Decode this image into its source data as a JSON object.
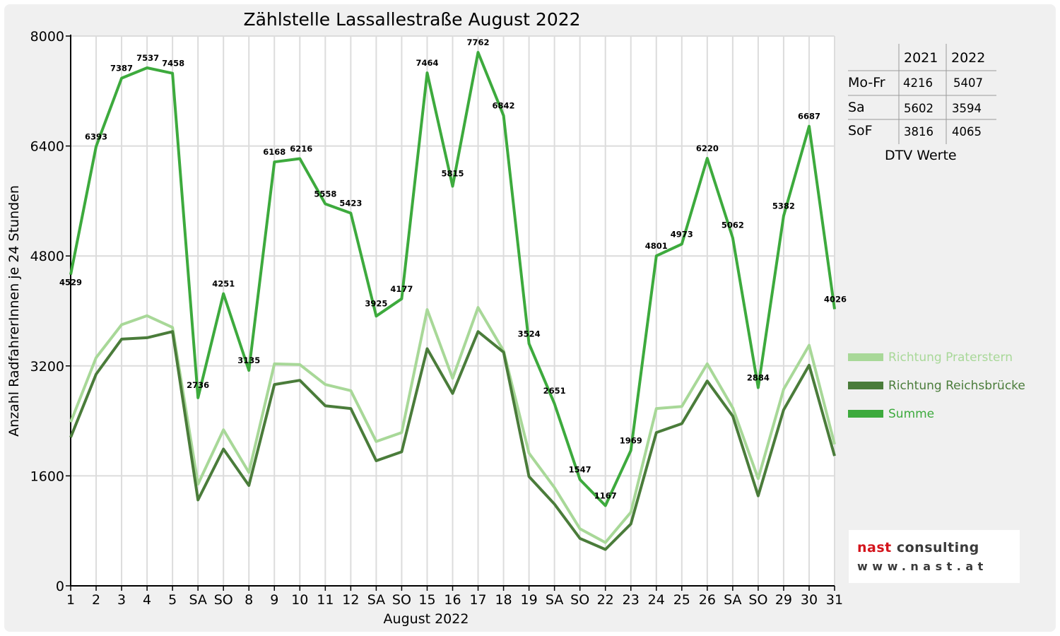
{
  "chart_data": {
    "type": "line",
    "title": "Zählstelle Lassallestraße August 2022",
    "xlabel": "August 2022",
    "ylabel": "Anzahl RadfahrerInnen je 24 Stunden",
    "ylim": [
      0,
      8000
    ],
    "yticks": [
      "0",
      "1600",
      "3200",
      "4800",
      "6400",
      "8000"
    ],
    "grid": true,
    "legend_position": "right",
    "categories": [
      "1",
      "2",
      "3",
      "4",
      "5",
      "SA",
      "SO",
      "8",
      "9",
      "10",
      "11",
      "12",
      "SA",
      "SO",
      "15",
      "16",
      "17",
      "18",
      "19",
      "SA",
      "SO",
      "22",
      "23",
      "24",
      "25",
      "26",
      "SA",
      "SO",
      "29",
      "30",
      "31"
    ],
    "red_categories": [
      6,
      13,
      14,
      20,
      27
    ],
    "series": [
      {
        "name": "Richtung Praterstern",
        "color": "#a8d898",
        "values": [
          2380,
          3320,
          3800,
          3930,
          3760,
          1480,
          2270,
          1650,
          3230,
          3220,
          2930,
          2840,
          2100,
          2230,
          4020,
          3020,
          4050,
          3420,
          1930,
          1430,
          830,
          630,
          1070,
          2580,
          2610,
          3230,
          2590,
          1560,
          2860,
          3500,
          2060
        ]
      },
      {
        "name": "Richtung Reichsbrücke",
        "color": "#4a7c3a",
        "values": [
          2160,
          3080,
          3590,
          3610,
          3700,
          1250,
          1990,
          1460,
          2930,
          2990,
          2620,
          2580,
          1820,
          1950,
          3450,
          2800,
          3700,
          3400,
          1590,
          1190,
          690,
          530,
          900,
          2230,
          2360,
          2980,
          2470,
          1310,
          2560,
          3210,
          1890
        ]
      },
      {
        "name": "Summe",
        "color": "#3daa3d",
        "values": [
          4529,
          6393,
          7387,
          7537,
          7458,
          2736,
          4251,
          3135,
          6168,
          6216,
          5558,
          5423,
          3925,
          4177,
          7464,
          5815,
          7762,
          6842,
          3524,
          2651,
          1547,
          1167,
          1969,
          4801,
          4973,
          6220,
          5062,
          2884,
          5382,
          6687,
          4026
        ]
      }
    ]
  },
  "dtv_table": {
    "caption": "DTV Werte",
    "columns": [
      "2021",
      "2022"
    ],
    "rows": [
      {
        "label": "Mo-Fr",
        "values": [
          "4216",
          "5407"
        ]
      },
      {
        "label": "Sa",
        "values": [
          "5602",
          "3594"
        ]
      },
      {
        "label": "SoF",
        "values": [
          "3816",
          "4065"
        ]
      }
    ]
  },
  "logo": {
    "name_part1": "nast",
    "name_part2": " consulting",
    "url": "www.nast.at"
  }
}
